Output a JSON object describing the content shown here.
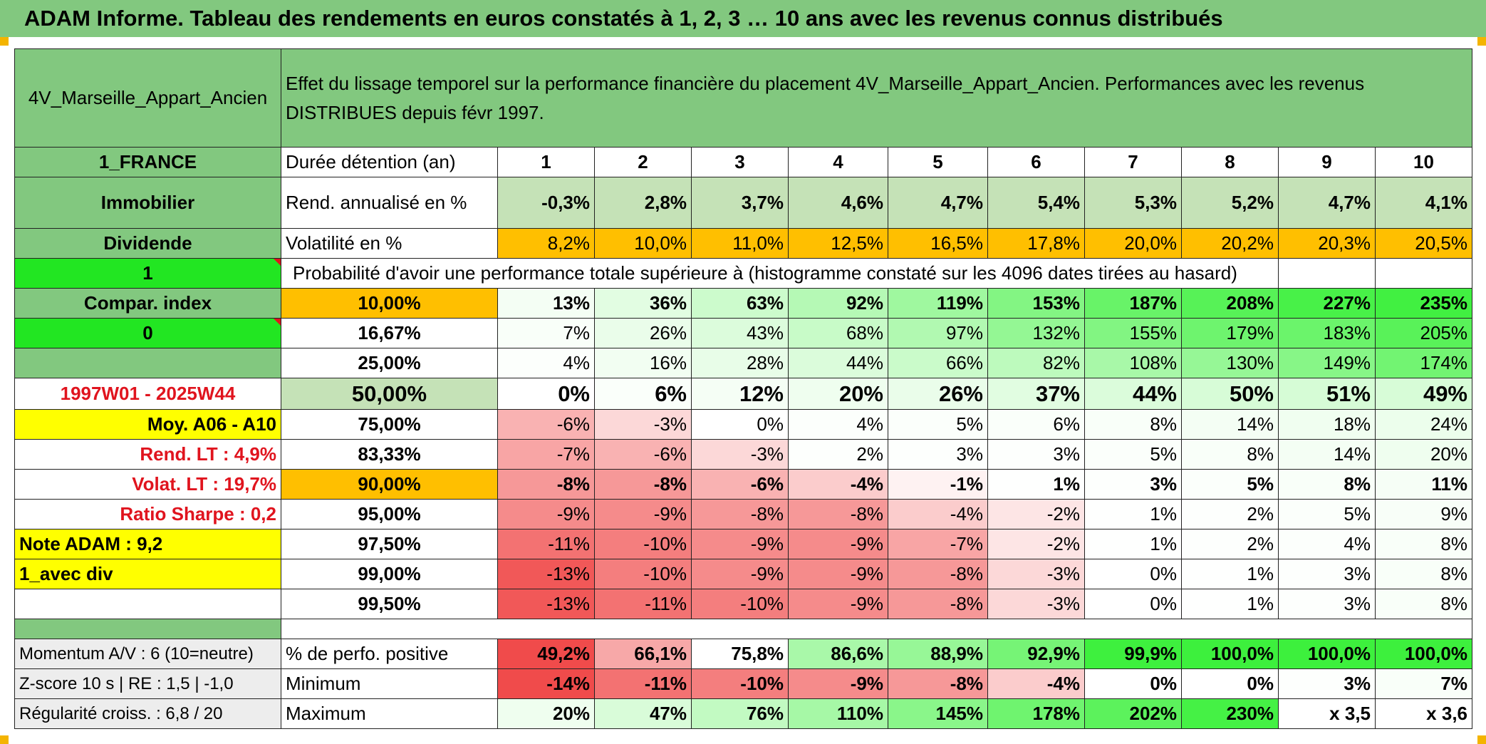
{
  "title": "ADAM Informe. Tableau des rendements en euros constatés à 1, 2, 3 … 10 ans avec les revenus connus distribués",
  "header": {
    "name": "4V_Marseille_Appart_Ancien",
    "description": "Effet du lissage temporel sur la performance financière du placement 4V_Marseille_Appart_Ancien. Performances avec les revenus DISTRIBUES depuis févr 1997."
  },
  "years": [
    "1",
    "2",
    "3",
    "4",
    "5",
    "6",
    "7",
    "8",
    "9",
    "10"
  ],
  "rows": {
    "duree": {
      "left": "1_FRANCE",
      "label": "Durée détention (an)"
    },
    "rend": {
      "left": "Immobilier",
      "label": "Rend. annualisé en %",
      "values": [
        "-0,3%",
        "2,8%",
        "3,7%",
        "4,6%",
        "4,7%",
        "5,4%",
        "5,3%",
        "5,2%",
        "4,7%",
        "4,1%"
      ]
    },
    "vol": {
      "left": "Dividende",
      "label": "Volatilité en %",
      "values": [
        "8,2%",
        "10,0%",
        "11,0%",
        "12,5%",
        "16,5%",
        "17,8%",
        "20,0%",
        "20,2%",
        "20,3%",
        "20,5%"
      ]
    },
    "proba": {
      "left": "1",
      "label": "Probabilité d'avoir une performance totale supérieure à (histogramme constaté sur les 4096 dates tirées au hasard)"
    }
  },
  "quantiles": [
    {
      "left": "Compar. index",
      "label": "10,00%",
      "values": [
        "13%",
        "36%",
        "63%",
        "92%",
        "119%",
        "153%",
        "187%",
        "208%",
        "227%",
        "235%"
      ]
    },
    {
      "left": "0",
      "label": "16,67%",
      "values": [
        "7%",
        "26%",
        "43%",
        "68%",
        "97%",
        "132%",
        "155%",
        "179%",
        "183%",
        "205%"
      ]
    },
    {
      "left": "",
      "label": "25,00%",
      "values": [
        "4%",
        "16%",
        "28%",
        "44%",
        "66%",
        "82%",
        "108%",
        "130%",
        "149%",
        "174%"
      ]
    },
    {
      "left": "1997W01 - 2025W44",
      "label": "50,00%",
      "values": [
        "0%",
        "6%",
        "12%",
        "20%",
        "26%",
        "37%",
        "44%",
        "50%",
        "51%",
        "49%"
      ]
    },
    {
      "left": "Moy. A06 - A10",
      "label": "75,00%",
      "values": [
        "-6%",
        "-3%",
        "0%",
        "4%",
        "5%",
        "6%",
        "8%",
        "14%",
        "18%",
        "24%"
      ]
    },
    {
      "left": "Rend. LT :   4,9%",
      "label": "83,33%",
      "values": [
        "-7%",
        "-6%",
        "-3%",
        "2%",
        "3%",
        "3%",
        "5%",
        "8%",
        "14%",
        "20%"
      ]
    },
    {
      "left": "Volat. LT :   19,7%",
      "label": "90,00%",
      "values": [
        "-8%",
        "-8%",
        "-6%",
        "-4%",
        "-1%",
        "1%",
        "3%",
        "5%",
        "8%",
        "11%"
      ]
    },
    {
      "left": "Ratio Sharpe :    0,2",
      "label": "95,00%",
      "values": [
        "-9%",
        "-9%",
        "-8%",
        "-8%",
        "-4%",
        "-2%",
        "1%",
        "2%",
        "5%",
        "9%"
      ]
    },
    {
      "left": "Note ADAM : 9,2",
      "label": "97,50%",
      "values": [
        "-11%",
        "-10%",
        "-9%",
        "-9%",
        "-7%",
        "-2%",
        "1%",
        "2%",
        "4%",
        "8%"
      ]
    },
    {
      "left": "1_avec div",
      "label": "99,00%",
      "values": [
        "-13%",
        "-10%",
        "-9%",
        "-9%",
        "-8%",
        "-3%",
        "0%",
        "1%",
        "3%",
        "8%"
      ]
    },
    {
      "left": "",
      "label": "99,50%",
      "values": [
        "-13%",
        "-11%",
        "-10%",
        "-9%",
        "-8%",
        "-3%",
        "0%",
        "1%",
        "3%",
        "8%"
      ]
    }
  ],
  "stats": [
    {
      "left": "Momentum A/V : 6 (10=neutre)",
      "label": "% de perfo. positive",
      "values": [
        "49,2%",
        "66,1%",
        "75,8%",
        "86,6%",
        "88,9%",
        "92,9%",
        "99,9%",
        "100,0%",
        "100,0%",
        "100,0%"
      ]
    },
    {
      "left": "Z-score 10 s | RE : 1,5 | -1,0",
      "label": "Minimum",
      "values": [
        "-14%",
        "-11%",
        "-10%",
        "-9%",
        "-8%",
        "-4%",
        "0%",
        "0%",
        "3%",
        "7%"
      ]
    },
    {
      "left": "Régularité croiss. : 6,8 / 20",
      "label": "Maximum",
      "values": [
        "20%",
        "47%",
        "76%",
        "110%",
        "145%",
        "178%",
        "202%",
        "230%",
        "x 3,5",
        "x 3,6"
      ]
    }
  ],
  "colors": {
    "header_green": "#82c87f",
    "light_green": "#c5e2b7",
    "orange": "#ffbf00",
    "bright_green": "#22e622",
    "yellow": "#ffff00",
    "red_text": "#e0141e",
    "positive_max": "#3df03d",
    "negative_max": "#f04b4b"
  }
}
